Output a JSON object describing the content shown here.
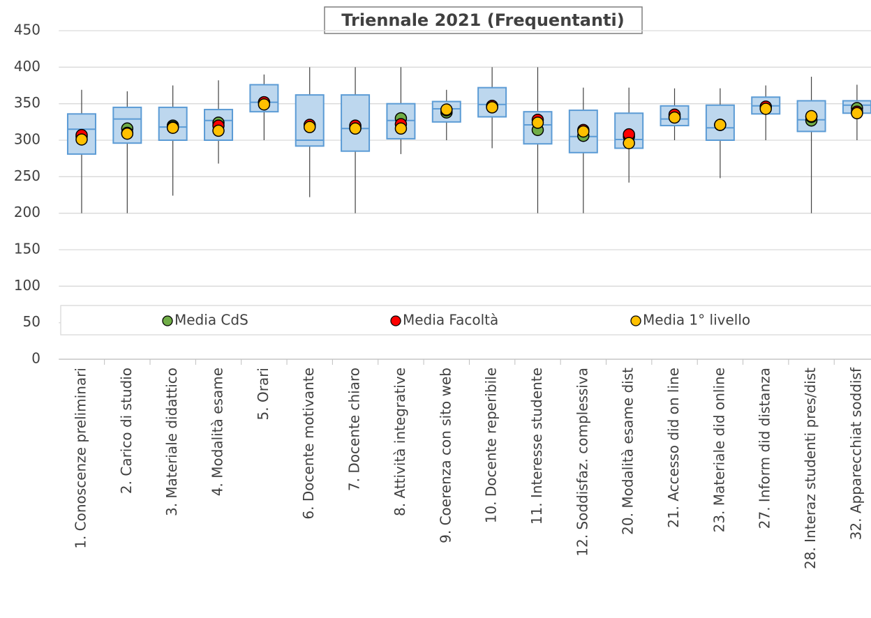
{
  "chart_data": {
    "type": "box",
    "title": "Triennale 2021 (Frequentanti)",
    "categories": [
      "1. Conoscenze preliminari",
      "2. Carico di studio",
      "3. Materiale didattico",
      "4. Modalità esame",
      "5. Orari",
      "6. Docente motivante",
      "7. Docente chiaro",
      "8. Attività integrative",
      "9. Coerenza con sito web",
      "10. Docente reperibile",
      "11. Interesse studente",
      "12. Soddisfaz. complessiva",
      "20. Modalità esame dist",
      "21. Accesso did on line",
      "23. Materiale did online",
      "27. Inform did distanza",
      "28. Interaz studenti pres/dist",
      "32. Apparecchiat soddisf"
    ],
    "boxes": {
      "whisker_low": [
        200,
        200,
        224,
        268,
        300,
        222,
        200,
        281,
        300,
        289,
        200,
        200,
        242,
        300,
        248,
        300,
        200,
        300
      ],
      "q1": [
        281,
        296,
        300,
        300,
        339,
        292,
        285,
        302,
        325,
        332,
        295,
        283,
        289,
        320,
        300,
        336,
        312,
        337
      ],
      "median": [
        315,
        329,
        318,
        327,
        352,
        300,
        316,
        327,
        343,
        349,
        321,
        305,
        301,
        329,
        317,
        347,
        328,
        348
      ],
      "q3": [
        336,
        345,
        345,
        342,
        376,
        362,
        362,
        350,
        353,
        372,
        339,
        341,
        337,
        347,
        348,
        359,
        354,
        354
      ],
      "whisker_high": [
        369,
        367,
        375,
        382,
        390,
        400,
        400,
        400,
        369,
        400,
        400,
        372,
        372,
        371,
        371,
        375,
        387,
        376
      ],
      "color": "#bdd7ee",
      "edge_color": "#5b9bd5"
    },
    "series": [
      {
        "name": "Media CdS",
        "color": "#70ad47",
        "values": [
          305,
          316,
          320,
          324,
          352,
          320,
          318,
          330,
          338,
          346,
          314,
          306,
          305,
          332,
          321,
          345,
          327,
          344
        ]
      },
      {
        "name": "Media Facoltà",
        "color": "#ff0000",
        "values": [
          307,
          310,
          318,
          320,
          352,
          321,
          320,
          322,
          341,
          347,
          328,
          314,
          308,
          335,
          321,
          346,
          332,
          339
        ]
      },
      {
        "name": "Media 1° livello",
        "color": "#ffc000",
        "values": [
          301,
          309,
          317,
          313,
          349,
          318,
          316,
          316,
          342,
          345,
          324,
          312,
          296,
          331,
          321,
          343,
          333,
          337
        ]
      }
    ],
    "ylim": [
      0,
      450
    ],
    "yticks": [
      0,
      50,
      100,
      150,
      200,
      250,
      300,
      350,
      400,
      450
    ],
    "grid": true
  }
}
